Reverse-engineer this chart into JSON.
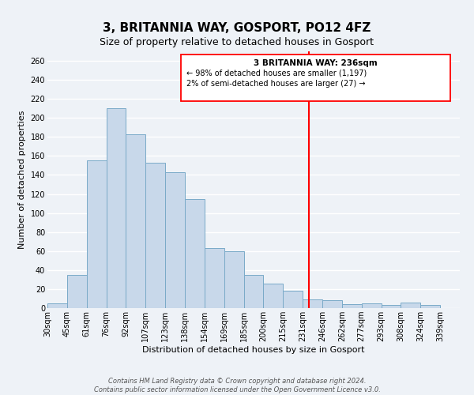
{
  "title": "3, BRITANNIA WAY, GOSPORT, PO12 4FZ",
  "subtitle": "Size of property relative to detached houses in Gosport",
  "xlabel": "Distribution of detached houses by size in Gosport",
  "ylabel": "Number of detached properties",
  "categories": [
    "30sqm",
    "45sqm",
    "61sqm",
    "76sqm",
    "92sqm",
    "107sqm",
    "123sqm",
    "138sqm",
    "154sqm",
    "169sqm",
    "185sqm",
    "200sqm",
    "215sqm",
    "231sqm",
    "246sqm",
    "262sqm",
    "277sqm",
    "293sqm",
    "308sqm",
    "324sqm",
    "339sqm"
  ],
  "values": [
    5,
    35,
    155,
    210,
    183,
    153,
    143,
    115,
    63,
    60,
    35,
    26,
    18,
    9,
    8,
    4,
    5,
    3,
    6,
    3
  ],
  "bar_color": "#c8d8ea",
  "bar_edge_color": "#7aaac8",
  "red_line_label": "3 BRITANNIA WAY: 236sqm",
  "annotation_line1": "← 98% of detached houses are smaller (1,197)",
  "annotation_line2": "2% of semi-detached houses are larger (27) →",
  "footer1": "Contains HM Land Registry data © Crown copyright and database right 2024.",
  "footer2": "Contains public sector information licensed under the Open Government Licence v3.0.",
  "ylim": [
    0,
    270
  ],
  "yticks": [
    0,
    20,
    40,
    60,
    80,
    100,
    120,
    140,
    160,
    180,
    200,
    220,
    240,
    260
  ],
  "background_color": "#eef2f7",
  "grid_color": "#ffffff",
  "title_fontsize": 11,
  "subtitle_fontsize": 9,
  "axis_label_fontsize": 8,
  "tick_fontsize": 7,
  "footer_fontsize": 6
}
